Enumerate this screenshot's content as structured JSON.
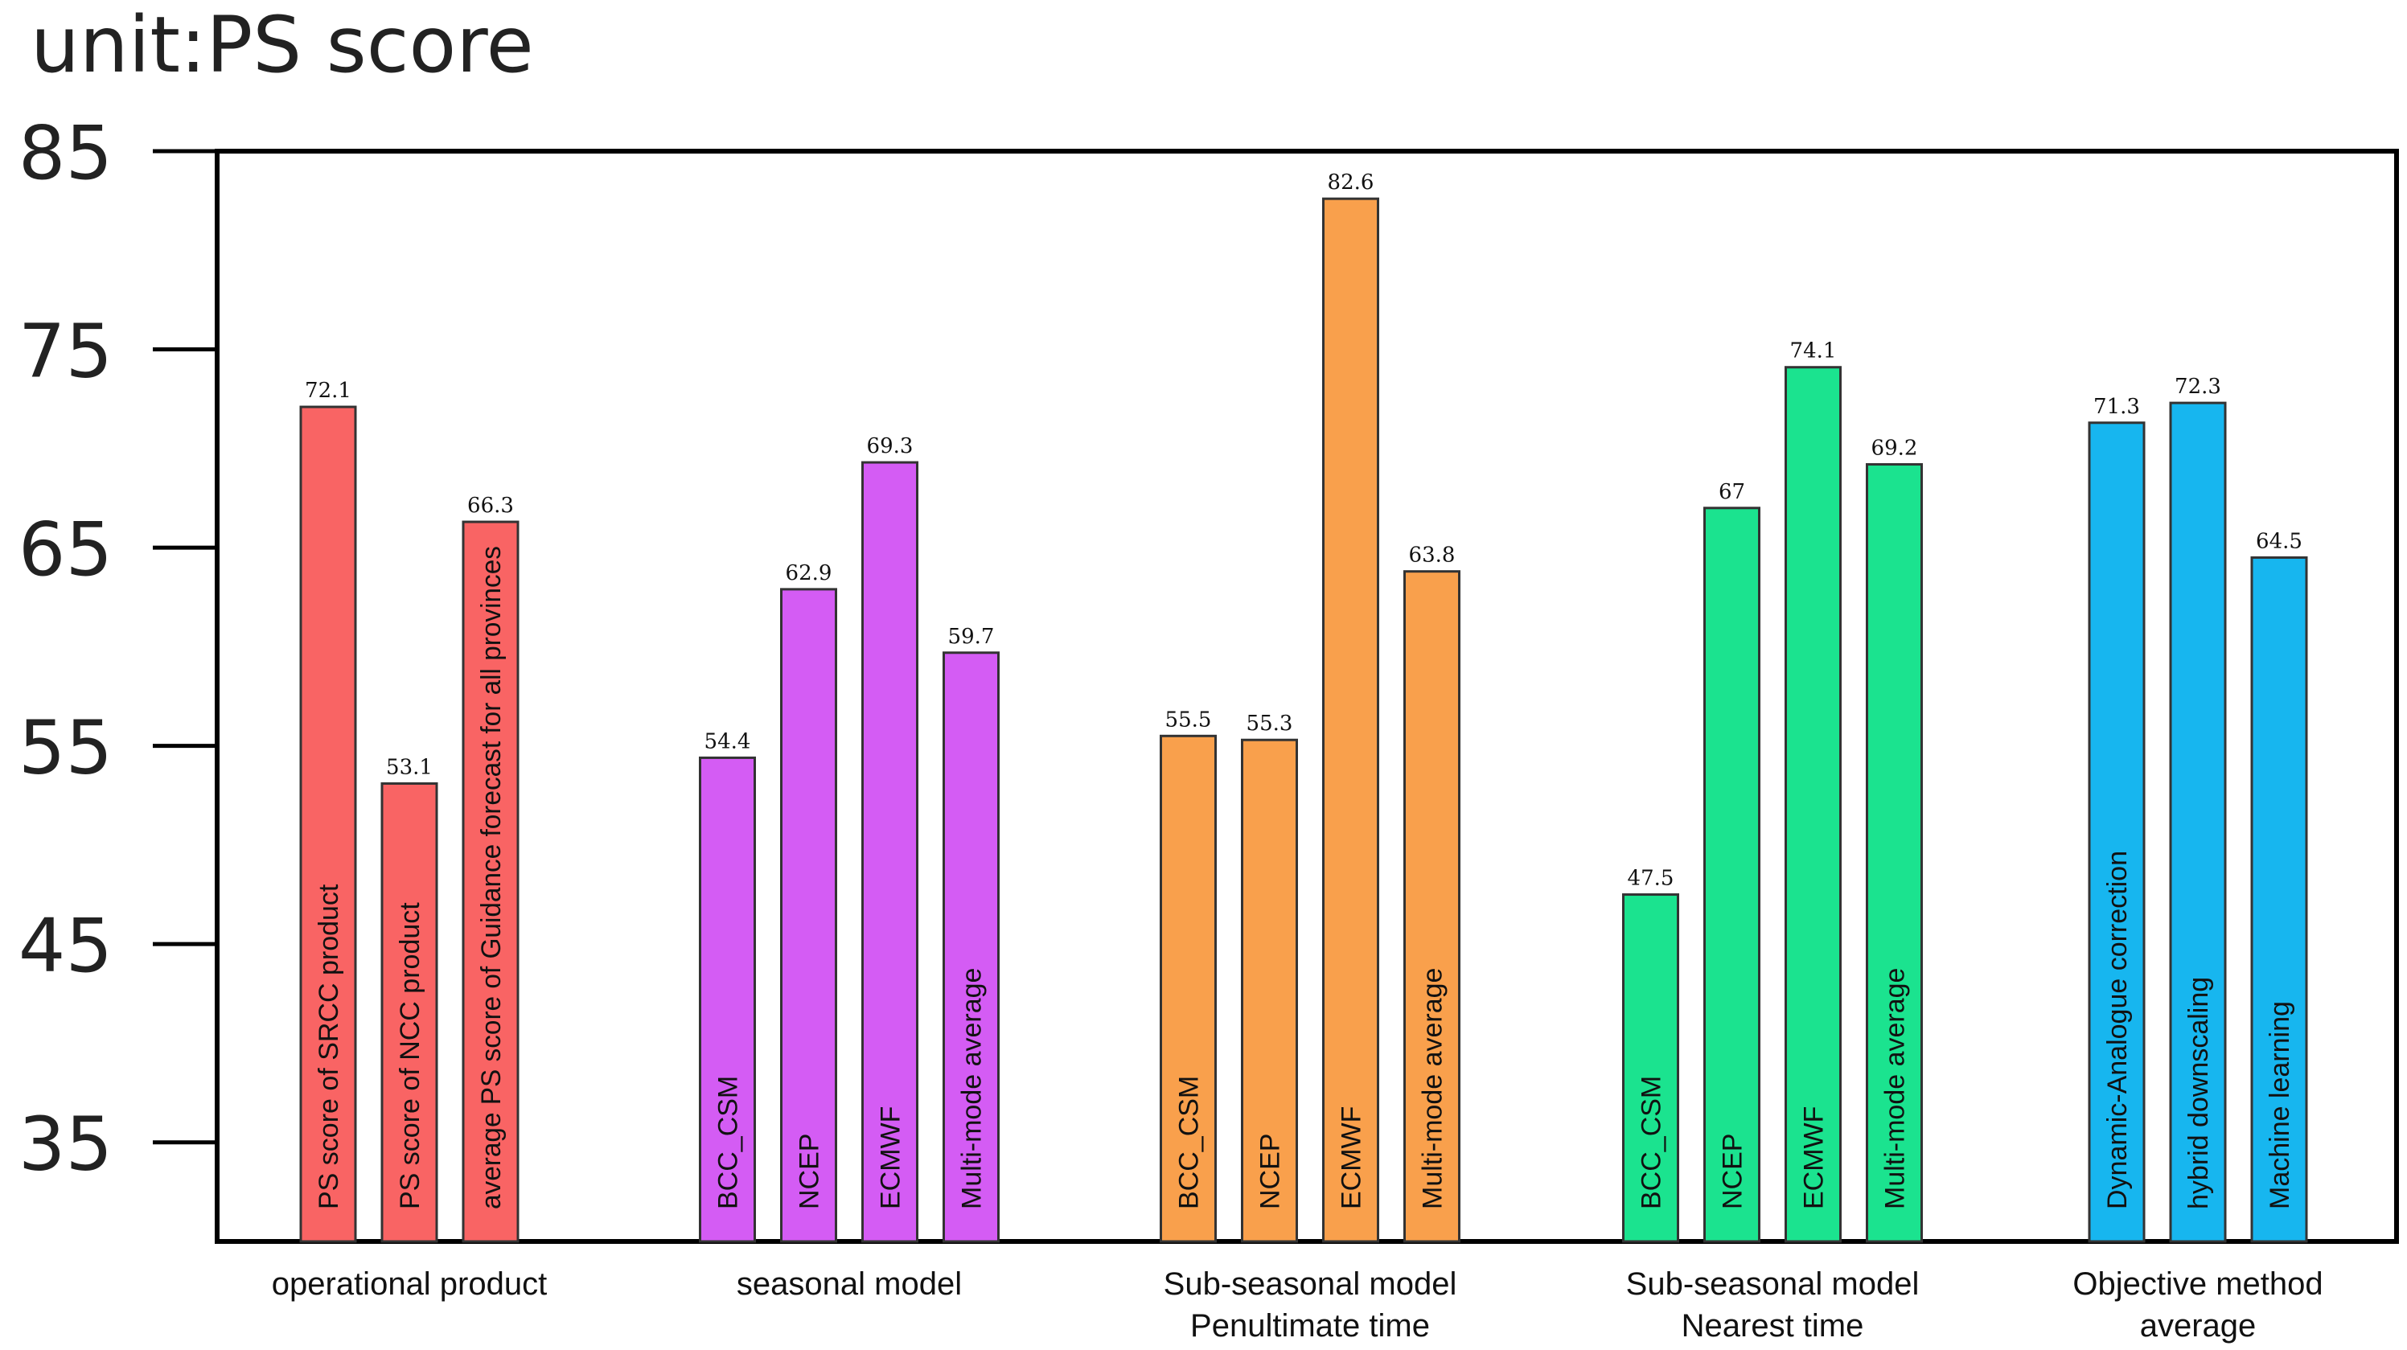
{
  "unit_label": "unit:PS score",
  "chart_data": {
    "type": "bar",
    "title": "unit:PS score",
    "xlabel": "",
    "ylabel": "",
    "ylim": [
      30,
      85
    ],
    "yticks": [
      35,
      45,
      55,
      65,
      75,
      85
    ],
    "grid": false,
    "groups": [
      {
        "label_lines": [
          "operational product"
        ],
        "color": "#f96464",
        "bars": [
          {
            "value": 72.1,
            "value_label": "72.1",
            "label": "PS score of SRCC product"
          },
          {
            "value": 53.1,
            "value_label": "53.1",
            "label": "PS score of NCC product"
          },
          {
            "value": 66.3,
            "value_label": "66.3",
            "label": "average PS score of Guidance forecast for all provinces"
          }
        ]
      },
      {
        "label_lines": [
          "seasonal model"
        ],
        "color": "#d45cf4",
        "bars": [
          {
            "value": 54.4,
            "value_label": "54.4",
            "label": "BCC_CSM"
          },
          {
            "value": 62.9,
            "value_label": "62.9",
            "label": "NCEP"
          },
          {
            "value": 69.3,
            "value_label": "69.3",
            "label": "ECMWF"
          },
          {
            "value": 59.7,
            "value_label": "59.7",
            "label": "Multi-mode average"
          }
        ]
      },
      {
        "label_lines": [
          "Sub-seasonal model",
          "Penultimate time"
        ],
        "color": "#f9a04c",
        "bars": [
          {
            "value": 55.5,
            "value_label": "55.5",
            "label": "BCC_CSM"
          },
          {
            "value": 55.3,
            "value_label": "55.3",
            "label": "NCEP"
          },
          {
            "value": 82.6,
            "value_label": "82.6",
            "label": "ECMWF"
          },
          {
            "value": 63.8,
            "value_label": "63.8",
            "label": "Multi-mode average"
          }
        ]
      },
      {
        "label_lines": [
          "Sub-seasonal model",
          "Nearest time"
        ],
        "color": "#1be38f",
        "bars": [
          {
            "value": 47.5,
            "value_label": "47.5",
            "label": "BCC_CSM"
          },
          {
            "value": 67,
            "value_label": "67",
            "label": "NCEP"
          },
          {
            "value": 74.1,
            "value_label": "74.1",
            "label": "ECMWF"
          },
          {
            "value": 69.2,
            "value_label": "69.2",
            "label": "Multi-mode average"
          }
        ]
      },
      {
        "label_lines": [
          "Objective method",
          "average"
        ],
        "color": "#17b6ef",
        "bars": [
          {
            "value": 71.3,
            "value_label": "71.3",
            "label": "Dynamic-Analogue correction"
          },
          {
            "value": 72.3,
            "value_label": "72.3",
            "label": "hybrid downscaling"
          },
          {
            "value": 64.5,
            "value_label": "64.5",
            "label": "Machine learning"
          }
        ]
      }
    ]
  }
}
